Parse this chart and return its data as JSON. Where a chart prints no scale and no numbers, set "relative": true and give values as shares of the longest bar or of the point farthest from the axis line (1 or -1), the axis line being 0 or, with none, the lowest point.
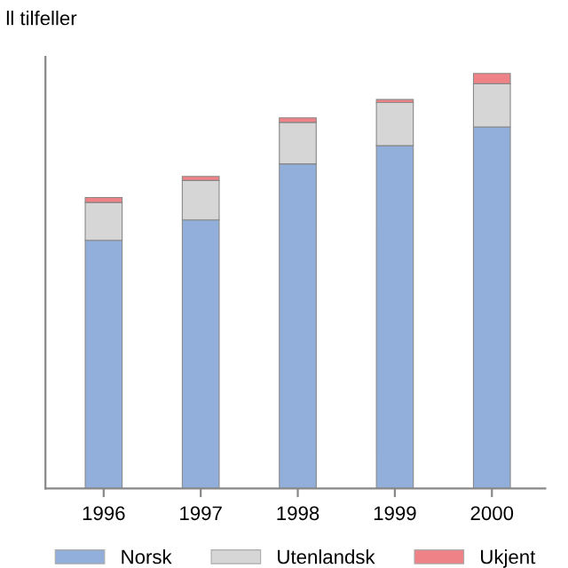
{
  "chart_data": {
    "type": "bar",
    "ylabel": "ll tilfeller",
    "stacked": true,
    "relative": true,
    "legend": "bottom",
    "grid": false,
    "categories": [
      "1996",
      "1997",
      "1998",
      "1999",
      "2000"
    ],
    "series": [
      {
        "name": "Norsk",
        "color": "#92afdb",
        "values": [
          0.598,
          0.647,
          0.782,
          0.826,
          0.871
        ]
      },
      {
        "name": "Utenlandsk",
        "color": "#d6d6d6",
        "values": [
          0.091,
          0.095,
          0.1,
          0.104,
          0.104
        ]
      },
      {
        "name": "Ukjent",
        "color": "#ee8286",
        "values": [
          0.012,
          0.01,
          0.011,
          0.007,
          0.025
        ]
      }
    ]
  }
}
